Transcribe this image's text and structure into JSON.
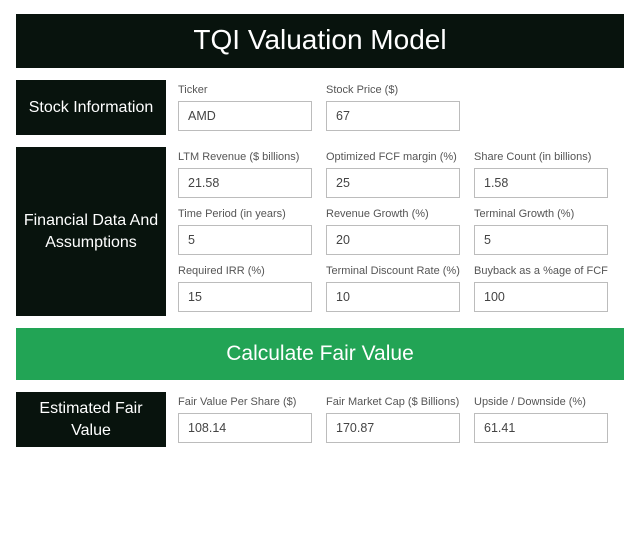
{
  "title": "TQI Valuation Model",
  "stock_info": {
    "label": "Stock Information",
    "fields": [
      {
        "label": "Ticker",
        "value": "AMD"
      },
      {
        "label": "Stock Price ($)",
        "value": "67"
      }
    ]
  },
  "financial": {
    "label": "Financial Data And Assumptions",
    "rows": [
      [
        {
          "label": "LTM Revenue ($ billions)",
          "value": "21.58"
        },
        {
          "label": "Optimized FCF margin (%)",
          "value": "25"
        },
        {
          "label": "Share Count (in billions)",
          "value": "1.58"
        }
      ],
      [
        {
          "label": "Time Period (in years)",
          "value": "5"
        },
        {
          "label": "Revenue Growth (%)",
          "value": "20"
        },
        {
          "label": "Terminal Growth (%)",
          "value": "5"
        }
      ],
      [
        {
          "label": "Required IRR (%)",
          "value": "15"
        },
        {
          "label": "Terminal Discount Rate (%)",
          "value": "10"
        },
        {
          "label": "Buyback as a %age of FCF",
          "value": "100"
        }
      ]
    ]
  },
  "calculate_label": "Calculate Fair Value",
  "estimated": {
    "label": "Estimated Fair Value",
    "fields": [
      {
        "label": "Fair Value Per Share ($)",
        "value": "108.14"
      },
      {
        "label": "Fair Market Cap ($ Billions)",
        "value": "170.87"
      },
      {
        "label": "Upside / Downside (%)",
        "value": "61.41"
      }
    ]
  },
  "colors": {
    "dark": "#08130d",
    "green": "#22a455",
    "border": "#bcbcbc"
  }
}
